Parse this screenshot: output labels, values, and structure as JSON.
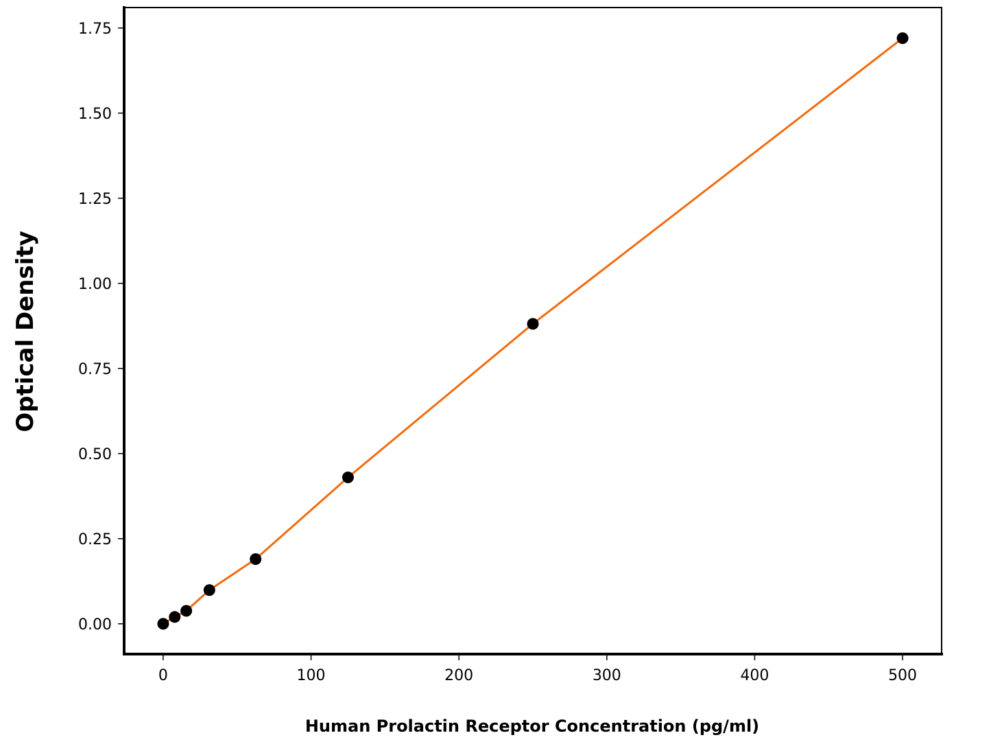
{
  "chart_data": {
    "type": "scatter",
    "title": "",
    "xlabel": "Human Prolactin Receptor Concentration (pg/ml)",
    "ylabel": "Optical Density",
    "xlim": [
      -26.4,
      526.4
    ],
    "ylim": [
      -0.089,
      1.81
    ],
    "xticks": [
      0,
      100,
      200,
      300,
      400,
      500
    ],
    "xtick_labels": [
      "0",
      "100",
      "200",
      "300",
      "400",
      "500"
    ],
    "yticks": [
      0,
      0.25,
      0.5,
      0.75,
      1.0,
      1.25,
      1.5,
      1.75
    ],
    "ytick_labels": [
      "0.00",
      "0.25",
      "0.50",
      "0.75",
      "1.00",
      "1.25",
      "1.50",
      "1.75"
    ],
    "grid": false,
    "series": [
      {
        "x": [
          0,
          7.8125,
          15.625,
          31.25,
          62.5,
          125,
          250,
          500
        ],
        "y": [
          0.0,
          0.02,
          0.038,
          0.099,
          0.19,
          0.43,
          0.881,
          1.72
        ],
        "marker_color": "#000000",
        "line_color": "#f26b0f"
      }
    ]
  }
}
